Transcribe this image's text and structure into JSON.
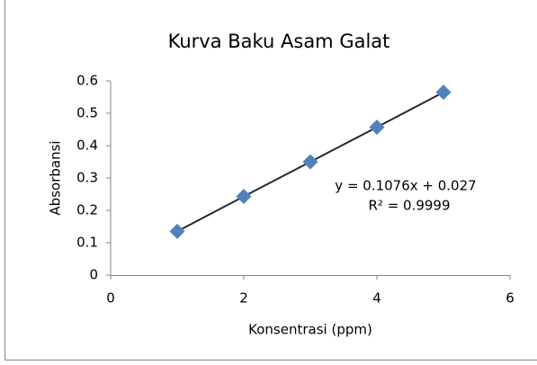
{
  "chart_data": {
    "type": "scatter",
    "title": "Kurva Baku Asam Galat",
    "x_label": "Konsentrasi (ppm)",
    "y_label": "Absorbansi",
    "annotations": [
      "y = 0.1076x + 0.027",
      "R² = 0.9999"
    ],
    "series": [
      {
        "color": "#4f81bd",
        "line_color": "#1f2a36",
        "x": [
          1,
          2,
          3,
          4,
          5
        ],
        "values": [
          0.135,
          0.243,
          0.35,
          0.457,
          0.565
        ]
      }
    ],
    "xlim": [
      0,
      6
    ],
    "xticks": [
      0,
      2,
      4,
      6
    ],
    "ylim": [
      0,
      0.6
    ],
    "yticks": [
      0,
      0.1,
      0.2,
      0.3,
      0.4,
      0.5,
      0.6
    ]
  }
}
